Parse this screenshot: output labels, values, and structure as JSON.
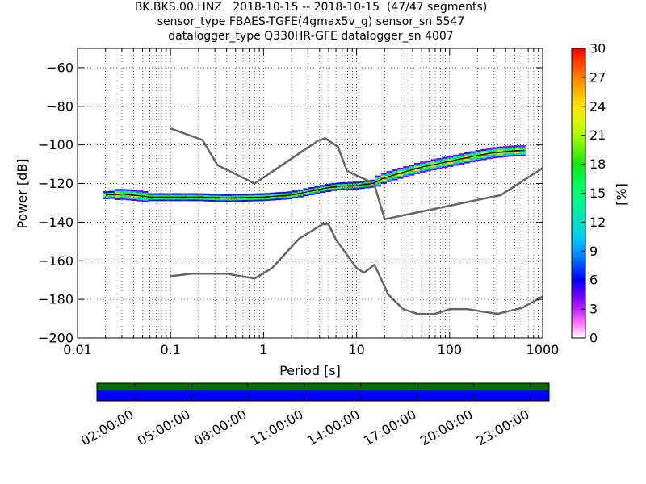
{
  "title": {
    "line1": "BK.BKS.00.HNZ   2018-10-15 -- 2018-10-15  (47/47 segments)",
    "line2": "sensor_type FBAES-TGFE(4gmax5v_g) sensor_sn 5547",
    "line3": "datalogger_type Q330HR-GFE datalogger_sn 4007"
  },
  "chart_data": {
    "type": "heatmap",
    "xlabel": "Period [s]",
    "ylabel": "Power [dB]",
    "xscale": "log",
    "xlim": [
      0.01,
      1000
    ],
    "ylim": [
      -200,
      -50
    ],
    "xticks": [
      0.01,
      0.1,
      1,
      10,
      100,
      1000
    ],
    "xtick_labels": [
      "0.01",
      "0.1",
      "1",
      "10",
      "100",
      "1000"
    ],
    "yticks": [
      -200,
      -180,
      -160,
      -140,
      -120,
      -100,
      -80,
      -60
    ],
    "ytick_labels": [
      "−200",
      "−180",
      "−160",
      "−140",
      "−120",
      "−100",
      "−80",
      "−60"
    ],
    "grid": true,
    "colorbar": {
      "label": "[%]",
      "range": [
        0,
        30
      ],
      "ticks": [
        0,
        3,
        6,
        9,
        12,
        15,
        18,
        21,
        24,
        27,
        30
      ],
      "tick_labels": [
        "0",
        "3",
        "6",
        "9",
        "12",
        "15",
        "18",
        "21",
        "24",
        "27",
        "30"
      ],
      "colormap": "pqlx"
    },
    "nhnm": {
      "period": [
        0.1,
        0.22,
        0.32,
        0.8,
        3.8,
        4.6,
        6.3,
        7.9,
        15.4,
        20
      ],
      "power": [
        -91.5,
        -97.4,
        -110.5,
        -120,
        -98,
        -96.5,
        -101,
        -113.5,
        -120,
        -138.5
      ],
      "period2": [
        20,
        354.8,
        1000
      ],
      "power2": [
        -138.5,
        -126,
        -112
      ]
    },
    "nlnm": {
      "period": [
        0.1,
        0.17,
        0.4,
        0.8,
        1.24,
        2.4,
        4.3,
        5,
        6,
        10,
        12,
        15.6,
        21.9,
        31.6,
        45,
        70,
        101,
        154,
        328,
        600,
        1000
      ],
      "power": [
        -168,
        -166.7,
        -166.7,
        -169.2,
        -163.7,
        -148.6,
        -141.1,
        -141.1,
        -149,
        -163.8,
        -166.2,
        -162.1,
        -177.5,
        -185,
        -187.5,
        -187.5,
        -185,
        -185,
        -187.5,
        -184.4,
        -178.5
      ]
    },
    "mode_curve": {
      "period": [
        0.02,
        0.03,
        0.04,
        0.06,
        0.1,
        0.2,
        0.4,
        1,
        2,
        4,
        6,
        10,
        15,
        20,
        30,
        50,
        100,
        200,
        300,
        500,
        650
      ],
      "power": [
        -126,
        -125.5,
        -126,
        -127,
        -127,
        -127,
        -127.5,
        -127,
        -126,
        -123,
        -121.5,
        -121,
        -120,
        -117,
        -114.5,
        -111.5,
        -108.5,
        -105.5,
        -104,
        -103,
        -103
      ]
    },
    "time_axis": {
      "tick_labels": [
        "02:00:00",
        "05:00:00",
        "08:00:00",
        "11:00:00",
        "14:00:00",
        "17:00:00",
        "20:00:00",
        "23:00:00"
      ],
      "hours": [
        2,
        5,
        8,
        11,
        14,
        17,
        20,
        23
      ],
      "span_hours": [
        0,
        24
      ],
      "data_available_color": "#006f00",
      "gaps_color": "#0000ff"
    }
  },
  "colors": {
    "noise_model": "#666666",
    "mode_line": "#000000",
    "grid": "#000000"
  }
}
